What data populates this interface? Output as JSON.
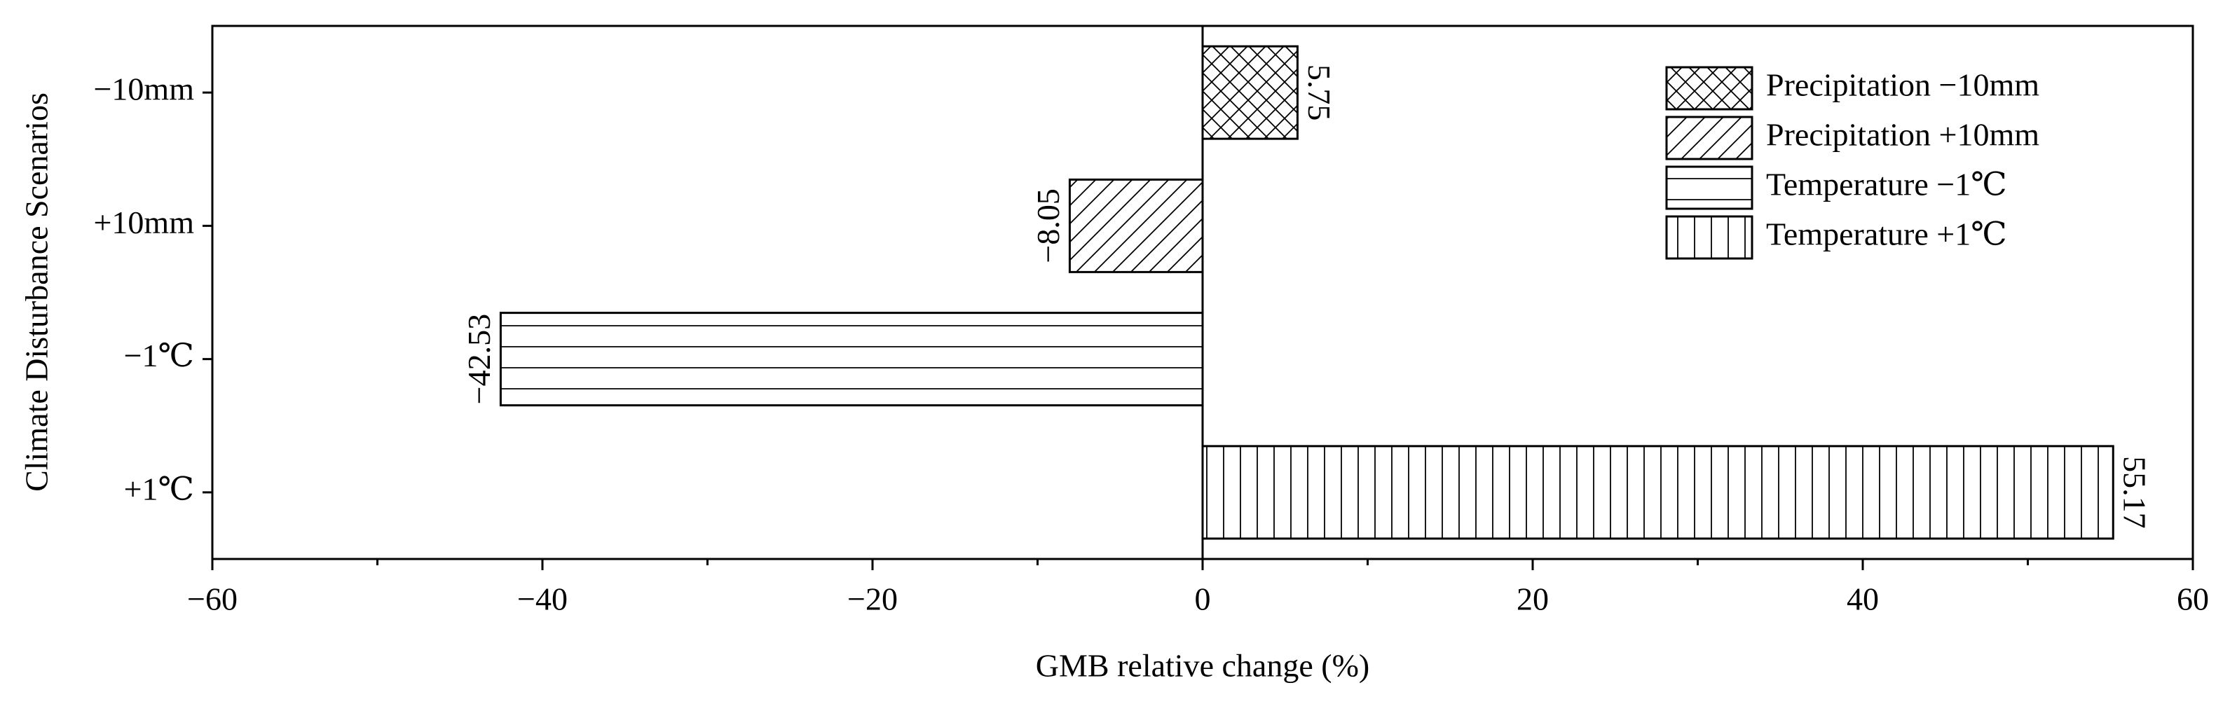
{
  "chart_data": {
    "type": "hbar",
    "x_label": "GMB relative change (%)",
    "y_label": "Climate Disturbance Scenarios",
    "categories": [
      "−10mm",
      "+10mm",
      "−1℃",
      "+1℃"
    ],
    "series": [
      {
        "name": "Precipitation −10mm",
        "color": "#000000",
        "pattern": "crosshatch",
        "values": [
          5.75,
          null,
          null,
          null
        ]
      },
      {
        "name": "Precipitation +10mm",
        "color": "#000000",
        "pattern": "diagonal",
        "values": [
          null,
          -8.05,
          null,
          null
        ],
        "value_labels": [
          null,
          "−8.05",
          null,
          null
        ]
      },
      {
        "name": "Temperature −1℃",
        "color": "#000000",
        "pattern": "horizontal",
        "values": [
          null,
          null,
          -42.53,
          null
        ],
        "value_labels": [
          null,
          null,
          "−42.53",
          null
        ]
      },
      {
        "name": "Temperature +1℃",
        "color": "#000000",
        "pattern": "vertical",
        "values": [
          null,
          null,
          null,
          55.17
        ]
      }
    ],
    "xlim": [
      -60,
      60
    ],
    "xticks": [
      {
        "value": -60,
        "label": "−60"
      },
      {
        "value": -40,
        "label": "−40"
      },
      {
        "value": -20,
        "label": "−20"
      },
      0,
      20,
      40,
      60
    ],
    "legend": "upper right"
  }
}
